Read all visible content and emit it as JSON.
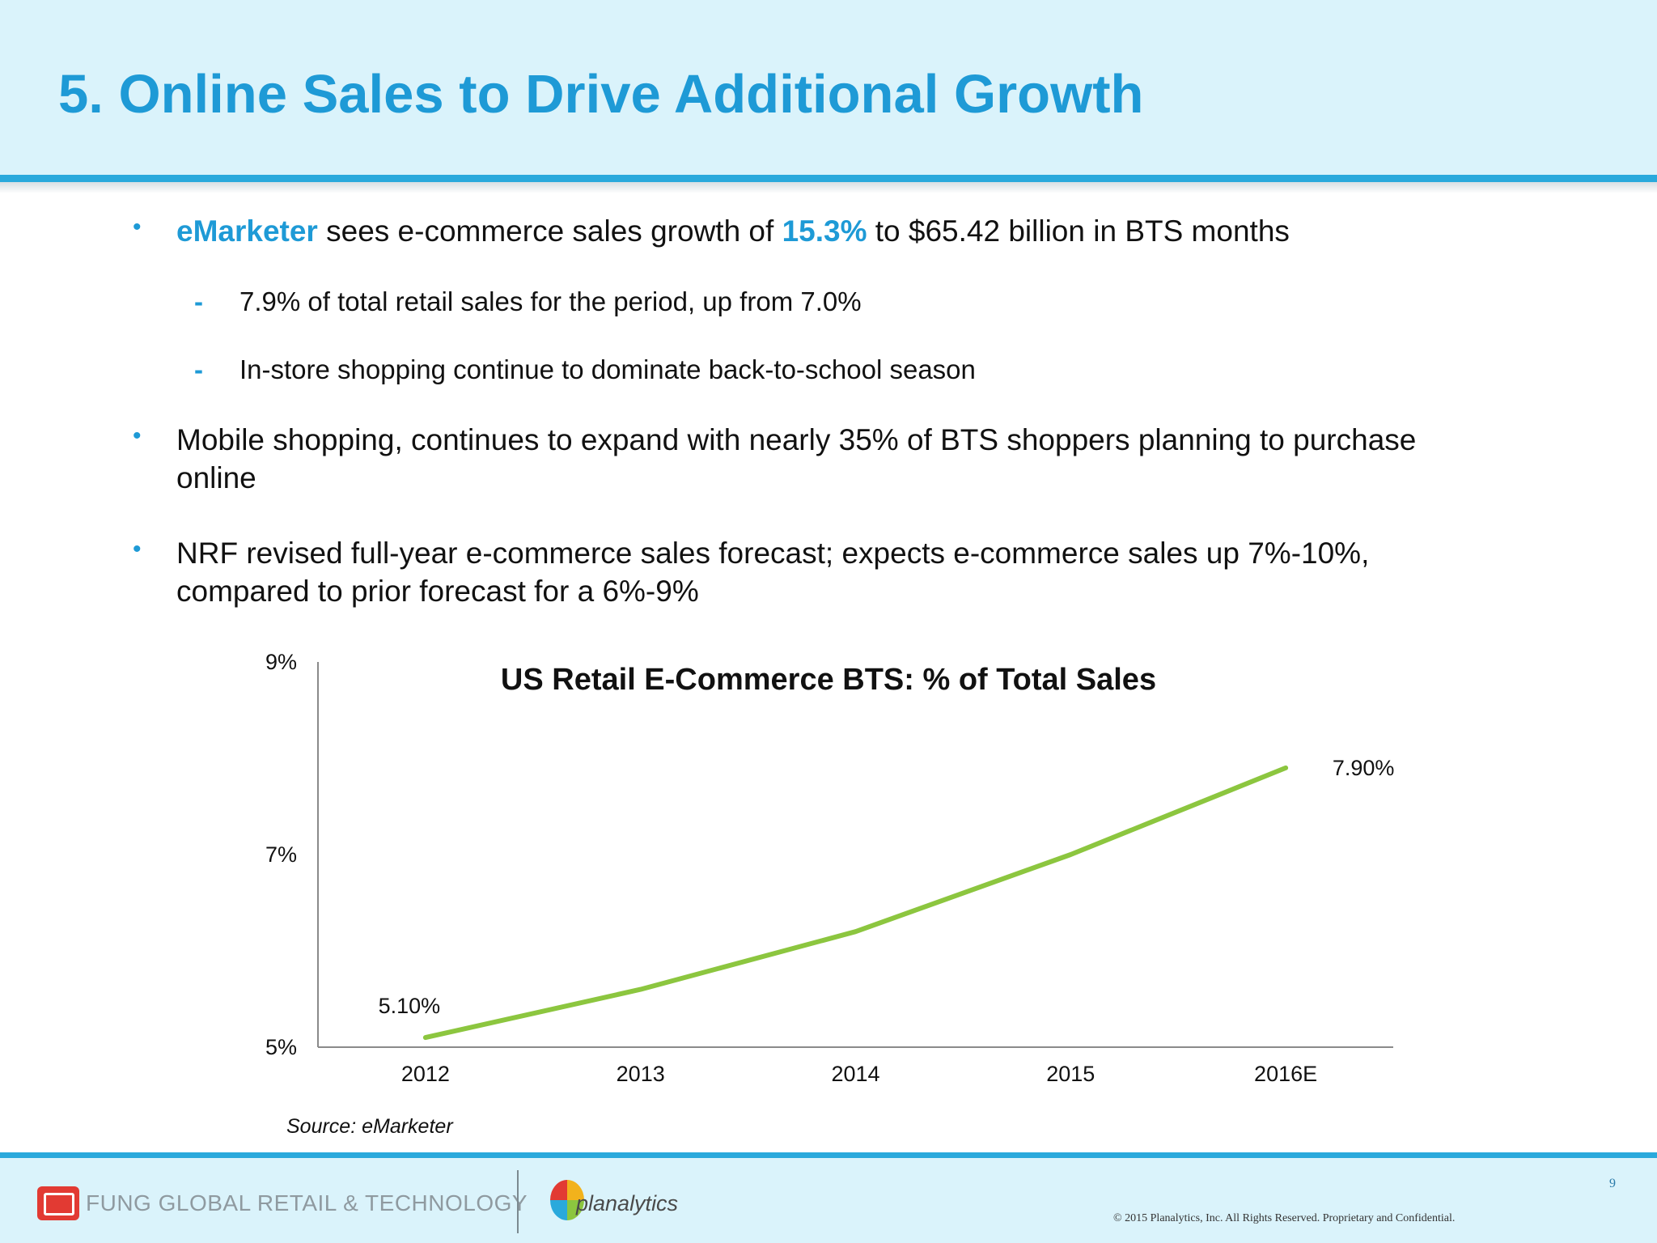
{
  "slide": {
    "title": "5. Online Sales to Drive Additional Growth",
    "bullets": [
      {
        "highlight": "eMarketer",
        "text_a": " sees e-commerce sales growth of ",
        "highlight_pct": "15.3%",
        "text_b": " to $65.42 billion in BTS months",
        "subs": [
          "7.9% of total retail sales for the period, up from 7.0%",
          "In-store shopping continue to dominate back-to-school season"
        ]
      },
      {
        "text": "Mobile shopping, continues to expand with nearly 35% of BTS shoppers planning to purchase online"
      },
      {
        "text": "NRF revised full-year e-commerce sales forecast; expects e-commerce sales up 7%-10%, compared to prior forecast for a 6%-9%"
      }
    ],
    "bullet_symbol": "•",
    "dash_symbol": "-",
    "source": "Source: eMarketer"
  },
  "footer": {
    "company": "FUNG GLOBAL RETAIL & TECHNOLOGY",
    "partner": "planalytics",
    "page_number": "9",
    "copyright": "© 2015 Planalytics, Inc. All Rights Reserved. Proprietary and Confidential."
  },
  "colors": {
    "accent": "#1e9ad6",
    "header_bg": "#daf3fb",
    "line": "#8cc63f"
  },
  "chart_data": {
    "type": "line",
    "title": "US Retail E-Commerce BTS: % of Total Sales",
    "categories": [
      "2012",
      "2013",
      "2014",
      "2015",
      "2016E"
    ],
    "series": [
      {
        "values": [
          5.1,
          5.6,
          6.2,
          7.0,
          7.9
        ]
      }
    ],
    "data_labels": [
      {
        "index": 0,
        "text": "5.10%"
      },
      {
        "index": 4,
        "text": "7.90%"
      }
    ],
    "ylim": [
      5,
      9
    ],
    "yticks": [
      {
        "value": 5,
        "label": "5%"
      },
      {
        "value": 7,
        "label": "7%"
      },
      {
        "value": 9,
        "label": "9%"
      }
    ],
    "grid": false,
    "legend": "none",
    "line_color": "#8cc63f"
  }
}
